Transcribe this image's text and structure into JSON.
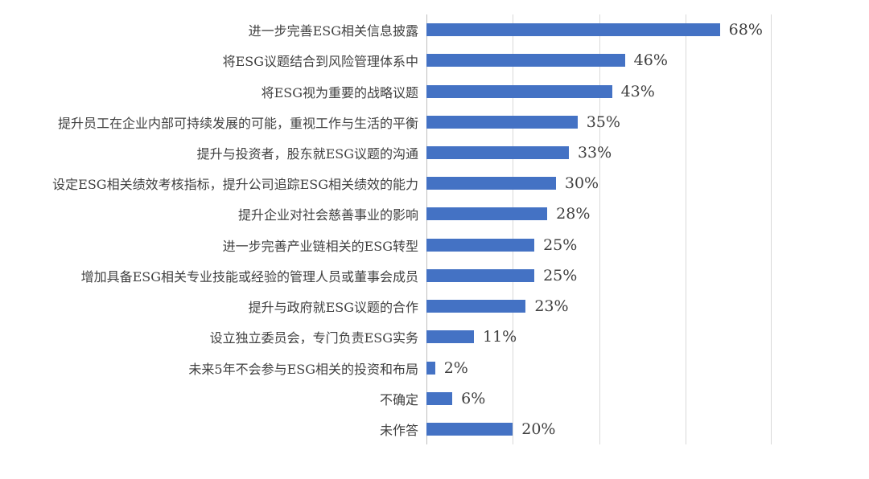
{
  "chart_data": {
    "type": "bar",
    "orientation": "horizontal",
    "title": "",
    "xlabel": "",
    "ylabel": "",
    "legend": "none",
    "grid": "vertical-only",
    "xlim": [
      0,
      80
    ],
    "gridline_interval": 20,
    "categories": [
      "进一步完善ESG相关信息披露",
      "将ESG议题结合到风险管理体系中",
      "将ESG视为重要的战略议题",
      "提升员工在企业内部可持续发展的可能，重视工作与生活的平衡",
      "提升与投资者，股东就ESG议题的沟通",
      "设定ESG相关绩效考核指标，提升公司追踪ESG相关绩效的能力",
      "提升企业对社会慈善事业的影响",
      "进一步完善产业链相关的ESG转型",
      "增加具备ESG相关专业技能或经验的管理人员或董事会成员",
      "提升与政府就ESG议题的合作",
      "设立独立委员会，专门负责ESG实务",
      "未来5年不会参与ESG相关的投资和布局",
      "不确定",
      "未作答"
    ],
    "values": [
      68,
      46,
      43,
      35,
      33,
      30,
      28,
      25,
      25,
      23,
      11,
      2,
      6,
      20
    ],
    "value_labels": [
      "68%",
      "46%",
      "43%",
      "35%",
      "33%",
      "30%",
      "28%",
      "25%",
      "25%",
      "23%",
      "11%",
      "2%",
      "6%",
      "20%"
    ],
    "colors": {
      "bar": "#4472C4",
      "gridline": "#D9D9D9",
      "category_axis_line": "#BFBFBF",
      "label_text": "#404040"
    }
  }
}
